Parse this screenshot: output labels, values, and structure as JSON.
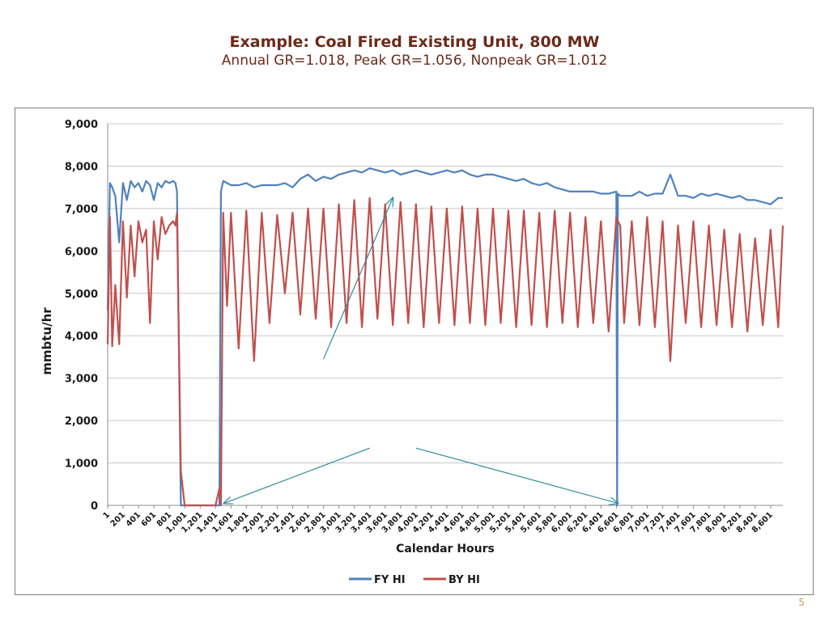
{
  "slide": {
    "title": "Example:  Coal Fired Existing Unit, 800 MW",
    "subtitle": "Annual GR=1.018, Peak GR=1.056, Nonpeak GR=1.012",
    "page_number": "5"
  },
  "chart_data": {
    "type": "line",
    "title": "",
    "xlabel": "Calendar Hours",
    "ylabel": "mmbtu/hr",
    "ylim": [
      0,
      9000
    ],
    "xlim": [
      1,
      8760
    ],
    "grid": true,
    "legend_position": "bottom",
    "y_ticks": [
      "0",
      "1,000",
      "2,000",
      "3,000",
      "4,000",
      "5,000",
      "6,000",
      "7,000",
      "8,000",
      "9,000"
    ],
    "x_tick_labels": [
      "1",
      "201",
      "401",
      "601",
      "801",
      "1,001",
      "1,201",
      "1,401",
      "1,601",
      "1,801",
      "2,001",
      "2,201",
      "2,401",
      "2,601",
      "2,801",
      "3,001",
      "3,201",
      "3,401",
      "3,601",
      "3,801",
      "4,001",
      "4,201",
      "4,401",
      "4,601",
      "4,801",
      "5,001",
      "5,201",
      "5,401",
      "5,601",
      "5,801",
      "6,001",
      "6,201",
      "6,401",
      "6,601",
      "6,801",
      "7,001",
      "7,201",
      "7,401",
      "7,601",
      "7,801",
      "8,001",
      "8,201",
      "8,401",
      "8,601"
    ],
    "series": [
      {
        "name": "FY HI",
        "color": "#4f81bd",
        "x": [
          1,
          30,
          60,
          100,
          150,
          200,
          250,
          300,
          350,
          400,
          450,
          500,
          550,
          600,
          650,
          700,
          750,
          800,
          850,
          880,
          900,
          950,
          1000,
          1100,
          1200,
          1300,
          1400,
          1450,
          1470,
          1500,
          1550,
          1600,
          1700,
          1800,
          1900,
          2000,
          2100,
          2200,
          2300,
          2400,
          2500,
          2600,
          2700,
          2800,
          2900,
          3000,
          3100,
          3200,
          3300,
          3400,
          3500,
          3600,
          3700,
          3800,
          3900,
          4000,
          4100,
          4200,
          4300,
          4400,
          4500,
          4600,
          4700,
          4800,
          4900,
          5000,
          5100,
          5200,
          5300,
          5400,
          5500,
          5600,
          5700,
          5800,
          5900,
          6000,
          6100,
          6200,
          6300,
          6400,
          6500,
          6600,
          6610,
          6620,
          6650,
          6700,
          6800,
          6900,
          7000,
          7100,
          7200,
          7300,
          7400,
          7500,
          7600,
          7700,
          7800,
          7900,
          8000,
          8100,
          8200,
          8300,
          8400,
          8500,
          8600,
          8700,
          8760
        ],
        "y": [
          4600,
          7600,
          7500,
          7300,
          6200,
          7600,
          7200,
          7650,
          7500,
          7600,
          7400,
          7650,
          7550,
          7200,
          7600,
          7500,
          7650,
          7600,
          7650,
          7600,
          7400,
          0,
          0,
          0,
          0,
          0,
          0,
          0,
          7400,
          7650,
          7600,
          7550,
          7550,
          7600,
          7500,
          7550,
          7550,
          7550,
          7600,
          7500,
          7700,
          7800,
          7650,
          7750,
          7700,
          7800,
          7850,
          7900,
          7850,
          7950,
          7900,
          7850,
          7900,
          7800,
          7850,
          7900,
          7850,
          7800,
          7850,
          7900,
          7850,
          7900,
          7800,
          7750,
          7800,
          7800,
          7750,
          7700,
          7650,
          7700,
          7600,
          7550,
          7600,
          7500,
          7450,
          7400,
          7400,
          7400,
          7400,
          7350,
          7350,
          7400,
          0,
          7350,
          7300,
          7300,
          7300,
          7400,
          7300,
          7350,
          7350,
          7800,
          7300,
          7300,
          7250,
          7350,
          7300,
          7350,
          7300,
          7250,
          7300,
          7200,
          7200,
          7150,
          7100,
          7250,
          7250
        ]
      },
      {
        "name": "BY HI",
        "color": "#c0504d",
        "x": [
          1,
          30,
          60,
          100,
          150,
          200,
          250,
          300,
          350,
          400,
          450,
          500,
          550,
          600,
          650,
          700,
          750,
          800,
          850,
          880,
          900,
          950,
          1000,
          1100,
          1200,
          1300,
          1400,
          1450,
          1470,
          1500,
          1550,
          1600,
          1700,
          1800,
          1900,
          2000,
          2100,
          2200,
          2300,
          2400,
          2500,
          2600,
          2700,
          2800,
          2900,
          3000,
          3100,
          3200,
          3300,
          3400,
          3500,
          3600,
          3700,
          3800,
          3900,
          4000,
          4100,
          4200,
          4300,
          4400,
          4500,
          4600,
          4700,
          4800,
          4900,
          5000,
          5100,
          5200,
          5300,
          5400,
          5500,
          5600,
          5700,
          5800,
          5900,
          6000,
          6100,
          6200,
          6300,
          6400,
          6500,
          6600,
          6610,
          6620,
          6650,
          6700,
          6800,
          6900,
          7000,
          7100,
          7200,
          7300,
          7400,
          7500,
          7600,
          7700,
          7800,
          7900,
          8000,
          8100,
          8200,
          8300,
          8400,
          8500,
          8600,
          8700,
          8760
        ],
        "y": [
          3800,
          6800,
          3750,
          5200,
          3800,
          6700,
          4900,
          6600,
          5400,
          6700,
          6200,
          6500,
          4300,
          6700,
          5800,
          6800,
          6400,
          6600,
          6700,
          6600,
          6900,
          800,
          0,
          0,
          0,
          0,
          0,
          400,
          0,
          6900,
          4700,
          6900,
          3700,
          6950,
          3400,
          6900,
          4300,
          6850,
          5000,
          6900,
          4500,
          7000,
          4400,
          7000,
          4200,
          7100,
          4300,
          7200,
          4200,
          7250,
          4400,
          7100,
          4250,
          7150,
          4300,
          7100,
          4200,
          7050,
          4300,
          7000,
          4250,
          7050,
          4300,
          7000,
          4250,
          7000,
          4300,
          6950,
          4200,
          6950,
          4250,
          6900,
          4200,
          6950,
          4300,
          6900,
          4200,
          6800,
          4300,
          6700,
          4100,
          6800,
          6700,
          6700,
          6600,
          4300,
          6700,
          4250,
          6800,
          4200,
          6700,
          3400,
          6600,
          4300,
          6700,
          4200,
          6600,
          4250,
          6500,
          4200,
          6400,
          4100,
          6300,
          4250,
          6500,
          4200,
          6600
        ]
      }
    ],
    "annotations": [
      {
        "type": "arrow",
        "from": [
          2800,
          3450
        ],
        "to": [
          3700,
          7250
        ]
      },
      {
        "type": "arrow",
        "from": [
          3400,
          1350
        ],
        "to": [
          1510,
          50
        ]
      },
      {
        "type": "arrow",
        "from": [
          4000,
          1350
        ],
        "to": [
          6620,
          50
        ]
      }
    ]
  }
}
